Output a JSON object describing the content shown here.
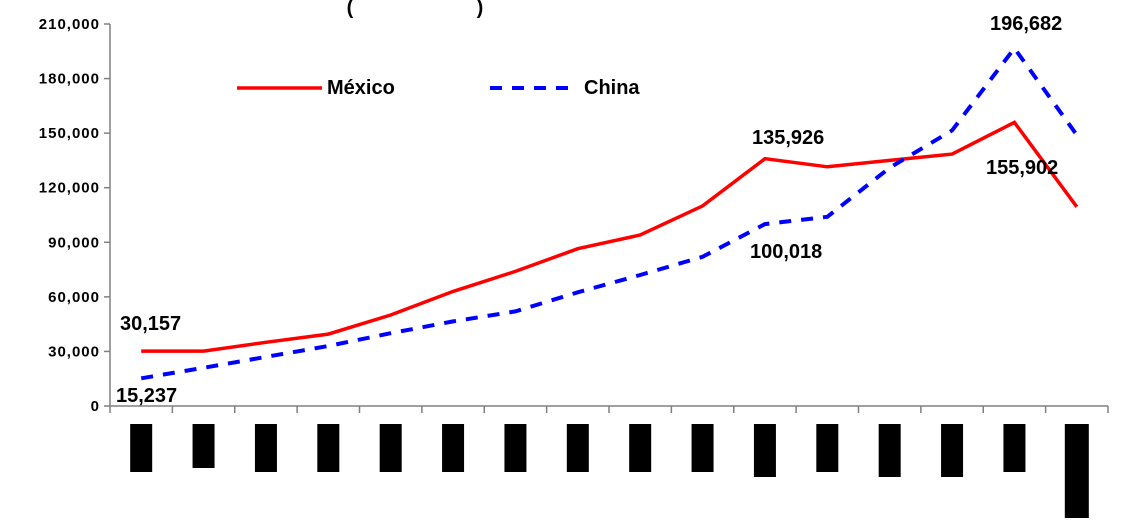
{
  "chart_data": {
    "type": "line",
    "title": "(",
    "title_right": ")",
    "ylim": [
      0,
      210000
    ],
    "yticks": [
      0,
      30000,
      60000,
      90000,
      120000,
      150000,
      180000,
      210000
    ],
    "ytick_labels": [
      "0",
      "30,000",
      "60,000",
      "90,000",
      "120,000",
      "150,000",
      "180,000",
      "210,000"
    ],
    "grid": false,
    "legend_position": "top-left",
    "x": [
      1,
      2,
      3,
      4,
      5,
      6,
      7,
      8,
      9,
      10,
      11,
      12,
      13,
      14,
      15,
      16
    ],
    "series": [
      {
        "name": "México",
        "color": "#ff0000",
        "style": "solid",
        "values": [
          30157,
          30200,
          35000,
          39500,
          50000,
          63000,
          74000,
          86500,
          94000,
          110000,
          135926,
          131500,
          135000,
          138500,
          155902,
          109500
        ]
      },
      {
        "name": "China",
        "color": "#0000ff",
        "style": "dashed",
        "values": [
          15237,
          21000,
          27000,
          33000,
          40000,
          46500,
          52000,
          62500,
          72000,
          82000,
          100018,
          104000,
          131000,
          151500,
          196682,
          149000
        ]
      }
    ],
    "annotations": [
      {
        "text": "30,157"
      },
      {
        "text": "15,237"
      },
      {
        "text": "135,926"
      },
      {
        "text": "100,018"
      },
      {
        "text": "196,682"
      },
      {
        "text": "155,902"
      }
    ],
    "category_mark_color": "#000000"
  }
}
